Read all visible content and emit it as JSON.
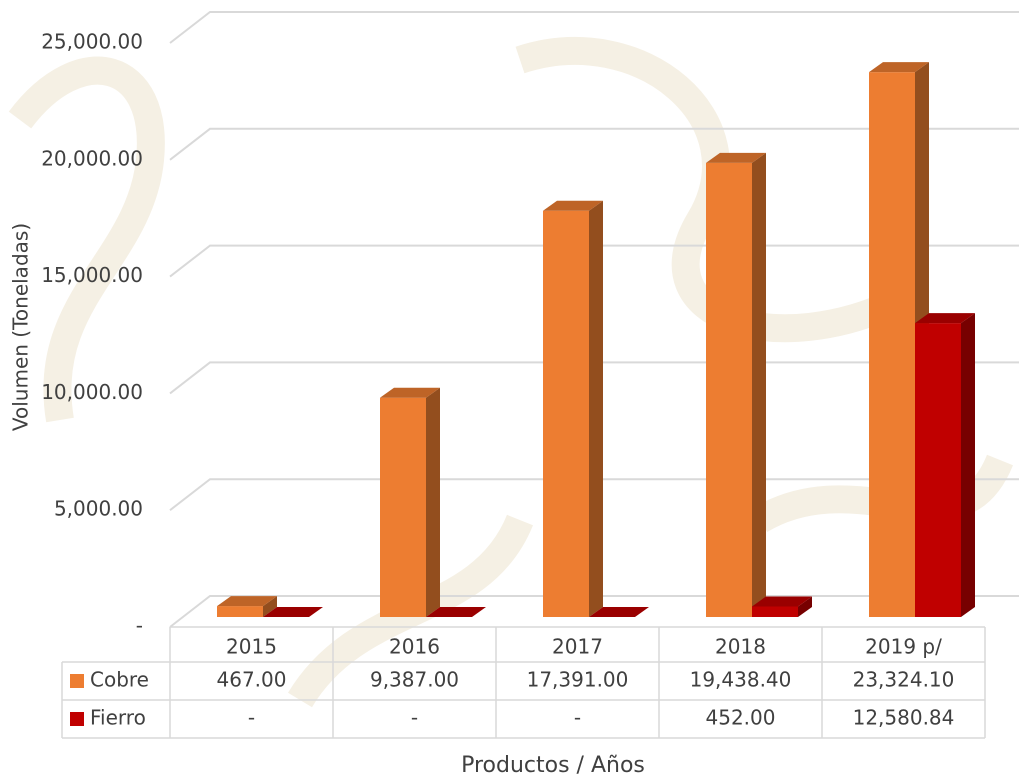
{
  "chart_data": {
    "type": "bar3d",
    "x_label": "Productos / Años",
    "y_label": "Volumen (Toneladas)",
    "categories": [
      "2015",
      "2016",
      "2017",
      "2018",
      "2019 p/"
    ],
    "series": [
      {
        "name": "Cobre",
        "color": "#ed7d31",
        "values": [
          467,
          9387,
          17391,
          19438.4,
          23324.1
        ],
        "value_labels": [
          "467.00",
          "9,387.00",
          "17,391.00",
          "19,438.40",
          "23,324.10"
        ]
      },
      {
        "name": "Fierro",
        "color": "#c00000",
        "values": [
          0,
          0,
          0,
          452,
          12580.84
        ],
        "value_labels": [
          "-",
          "-",
          "-",
          "452.00",
          "12,580.84"
        ]
      }
    ],
    "ylim": [
      0,
      25000
    ],
    "yticks": [
      {
        "value": 0,
        "label": "-"
      },
      {
        "value": 5000,
        "label": "5,000.00"
      },
      {
        "value": 10000,
        "label": "10,000.00"
      },
      {
        "value": 15000,
        "label": "15,000.00"
      },
      {
        "value": 20000,
        "label": "20,000.00"
      },
      {
        "value": 25000,
        "label": "25,000.00"
      }
    ],
    "grid": true
  }
}
